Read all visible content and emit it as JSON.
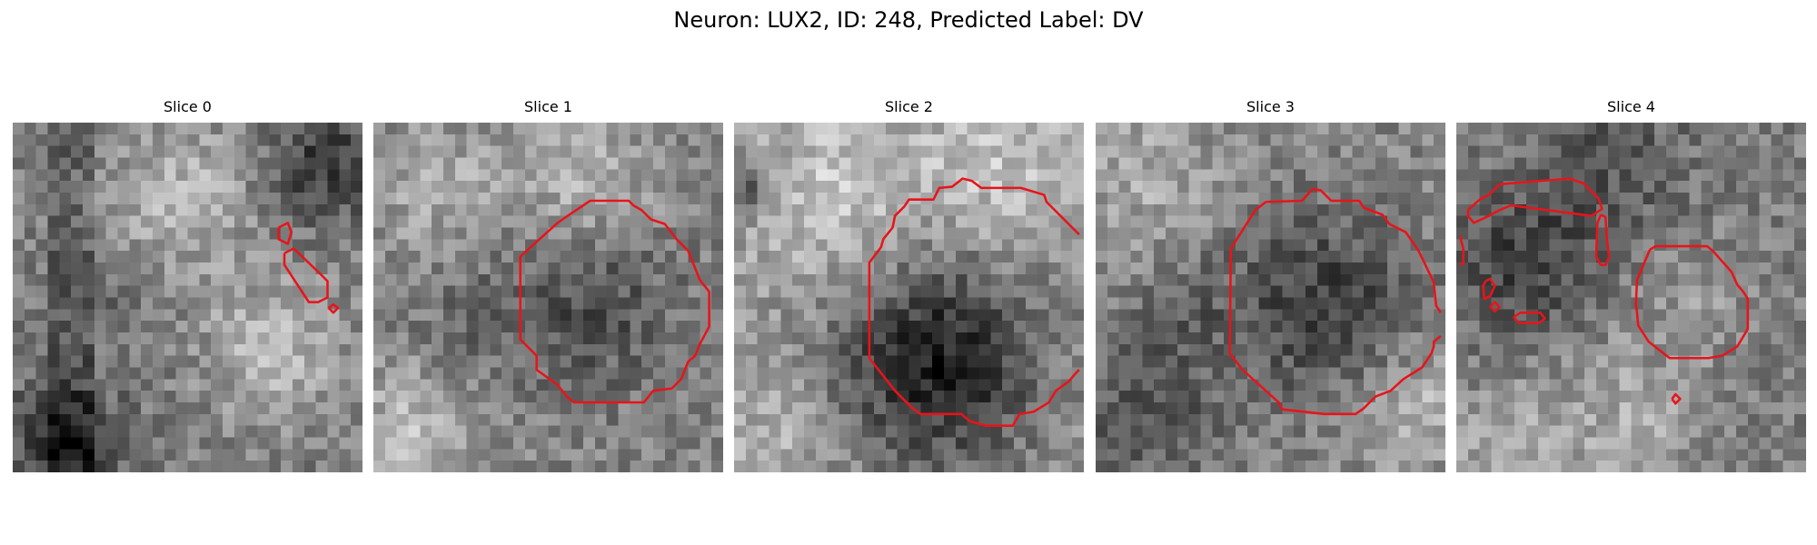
{
  "title": "Neuron: LUX2, ID: 248, Predicted Label: DV",
  "contour_color": "#e8141a",
  "colormap": "grayscale",
  "panels": [
    {
      "title": "Slice 0"
    },
    {
      "title": "Slice 1"
    },
    {
      "title": "Slice 2"
    },
    {
      "title": "Slice 3"
    },
    {
      "title": "Slice 4"
    }
  ]
}
